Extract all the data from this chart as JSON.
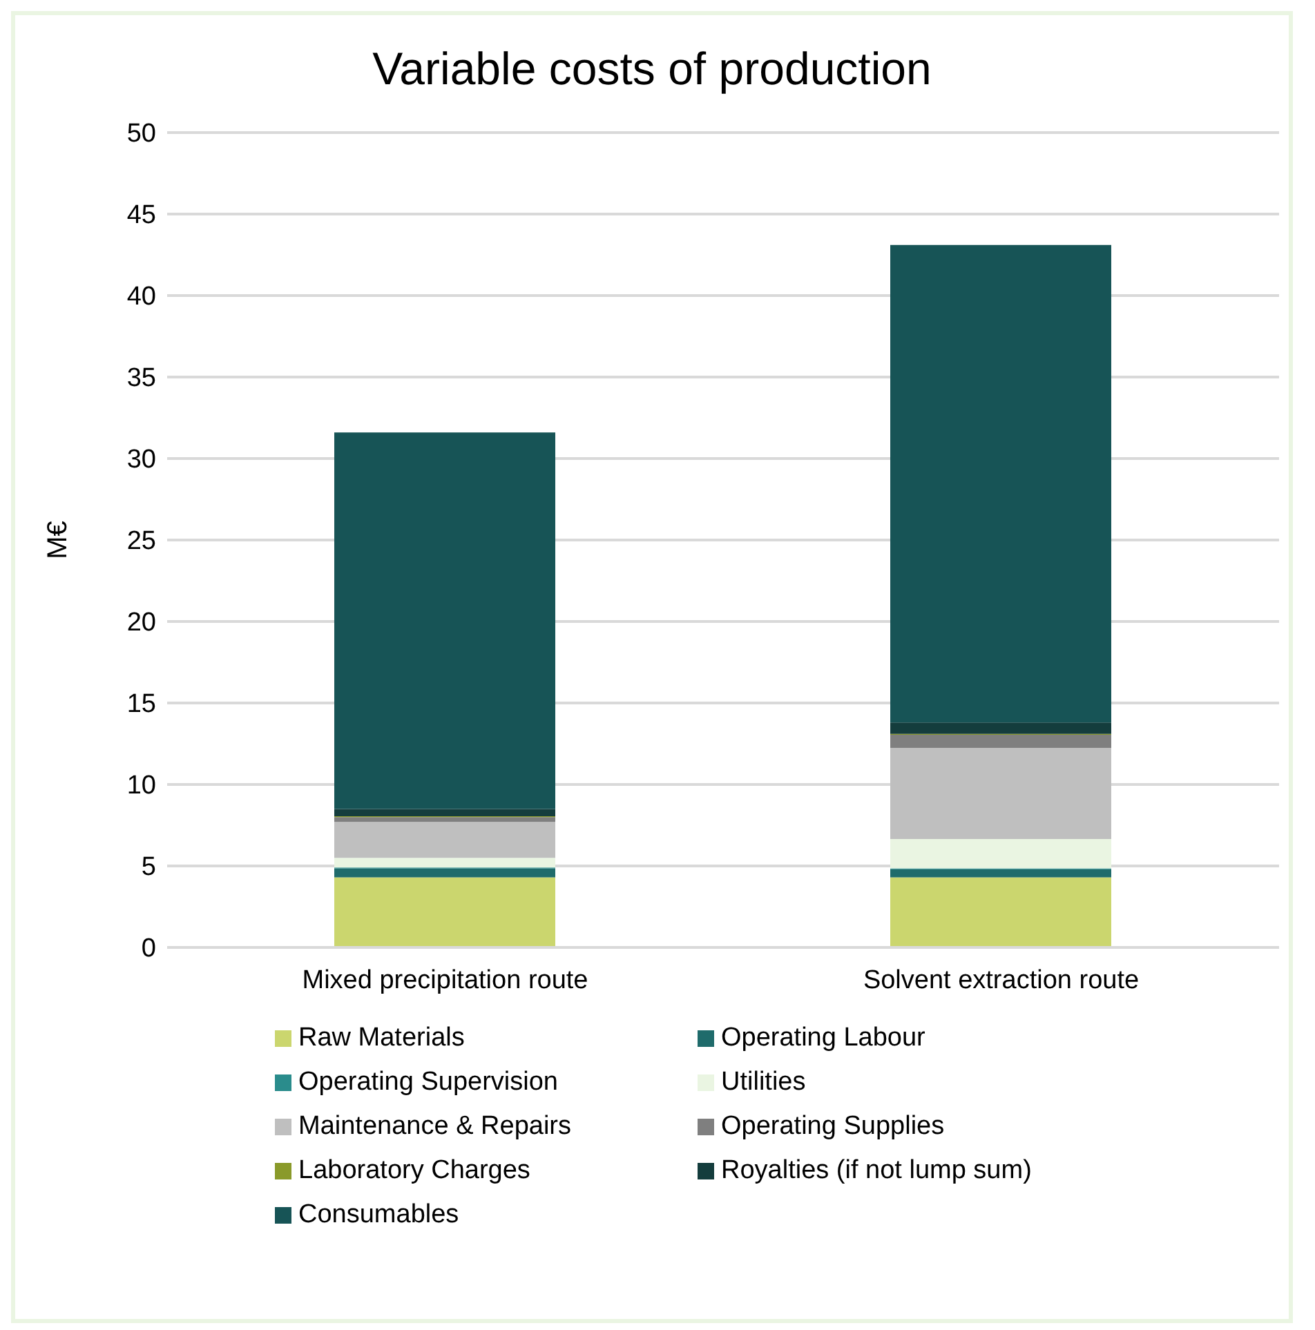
{
  "chart_data": {
    "type": "bar",
    "title": "Variable costs of production",
    "ylabel": "M€",
    "categories": [
      "Mixed precipitation route",
      "Solvent extraction route"
    ],
    "stacked": true,
    "ylim": [
      0,
      50
    ],
    "yticks": [
      0,
      5,
      10,
      15,
      20,
      25,
      30,
      35,
      40,
      45,
      50
    ],
    "grid": "y",
    "legend": "bottom",
    "series": [
      {
        "name": "Raw Materials",
        "color": "#cbd66e",
        "values": [
          4.3,
          4.3
        ]
      },
      {
        "name": "Operating Labour",
        "color": "#1f6b6b",
        "values": [
          0.55,
          0.5
        ]
      },
      {
        "name": "Operating Supervision",
        "color": "#2a8c8c",
        "values": [
          0.05,
          0.05
        ]
      },
      {
        "name": "Utilities",
        "color": "#eaf5e2",
        "values": [
          0.6,
          1.8
        ]
      },
      {
        "name": "Maintenance & Repairs",
        "color": "#bfbfbf",
        "values": [
          2.2,
          5.6
        ]
      },
      {
        "name": "Operating Supplies",
        "color": "#7f7f7f",
        "values": [
          0.3,
          0.8
        ]
      },
      {
        "name": "Laboratory Charges",
        "color": "#8a9a2a",
        "values": [
          0.05,
          0.05
        ]
      },
      {
        "name": "Royalties (if not lump sum)",
        "color": "#143d3d",
        "values": [
          0.45,
          0.7
        ]
      },
      {
        "name": "Consumables",
        "color": "#175456",
        "values": [
          23.1,
          29.3
        ]
      }
    ]
  }
}
